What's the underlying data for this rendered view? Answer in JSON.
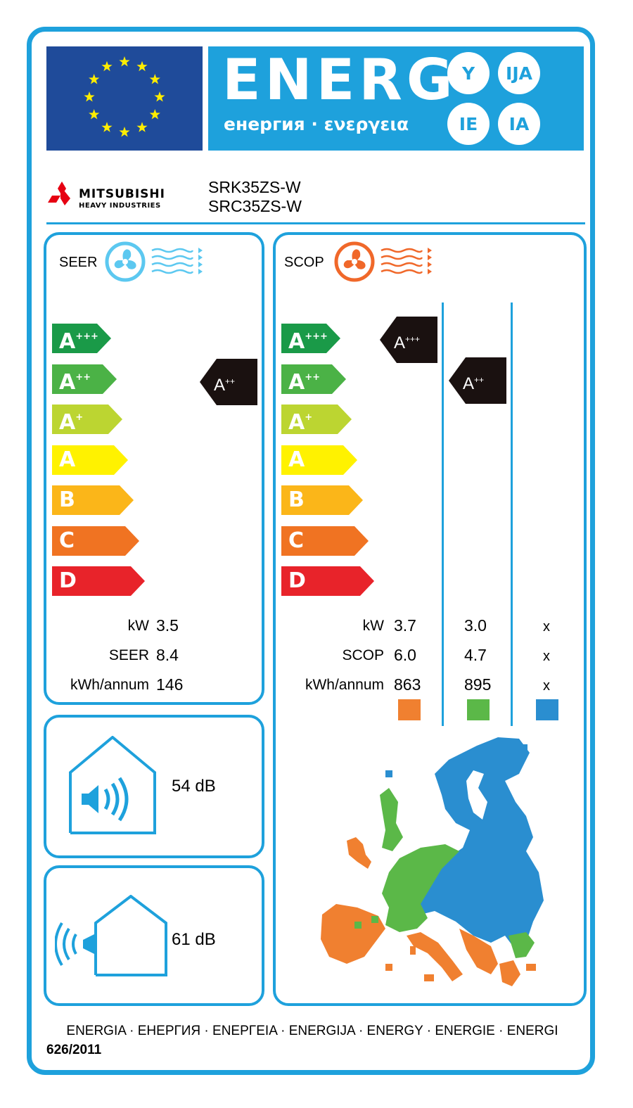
{
  "header": {
    "energy_word": "ENERG",
    "energy_subtitle": "енергия · ενεργεια",
    "suffixes": [
      "Y",
      "IJA",
      "IE",
      "IA"
    ]
  },
  "brand": {
    "name": "MITSUBISHI",
    "subline": "HEAVY INDUSTRIES",
    "models": [
      "SRK35ZS-W",
      "SRC35ZS-W"
    ]
  },
  "classes": [
    {
      "letter": "A",
      "sup": "+++",
      "color": "#1a9a48"
    },
    {
      "letter": "A",
      "sup": "++",
      "color": "#4bb246"
    },
    {
      "letter": "A",
      "sup": "+",
      "color": "#bcd531"
    },
    {
      "letter": "A",
      "sup": "",
      "color": "#fff200"
    },
    {
      "letter": "B",
      "sup": "",
      "color": "#fbb619"
    },
    {
      "letter": "C",
      "sup": "",
      "color": "#f07322"
    },
    {
      "letter": "D",
      "sup": "",
      "color": "#e8232a"
    }
  ],
  "cooling": {
    "label": "SEER",
    "rating": {
      "letter": "A",
      "sup": "++"
    },
    "rows": [
      {
        "label": "kW",
        "value": "3.5"
      },
      {
        "label": "SEER",
        "value": "8.4"
      },
      {
        "label": "kWh/annum",
        "value": "146"
      }
    ]
  },
  "heating": {
    "label": "SCOP",
    "ratings": [
      {
        "letter": "A",
        "sup": "+++",
        "zone": "warmer"
      },
      {
        "letter": "A",
        "sup": "++",
        "zone": "average"
      }
    ],
    "row_labels": [
      "kW",
      "SCOP",
      "kWh/annum"
    ],
    "columns": [
      {
        "zone": "warmer",
        "color": "#f08030",
        "values": [
          "3.7",
          "6.0",
          "863"
        ]
      },
      {
        "zone": "average",
        "color": "#5bb848",
        "values": [
          "3.0",
          "4.7",
          "895"
        ]
      },
      {
        "zone": "colder",
        "color": "#2a8ed0",
        "values": [
          "x",
          "x",
          "x"
        ]
      }
    ]
  },
  "noise": {
    "indoor": "54 dB",
    "outdoor": "61 dB"
  },
  "footer": {
    "languages": "ENERGIA · ЕНЕРГИЯ · ΕΝΕΡΓΕΙΑ · ENERGIJA · ENERGY · ENERGIE · ENERGI",
    "regulation": "626/2011"
  },
  "colors": {
    "label_blue": "#1ea1dc",
    "eu_blue": "#1f4b9a",
    "eu_star": "#ffed00",
    "brand_red": "#e60012"
  }
}
